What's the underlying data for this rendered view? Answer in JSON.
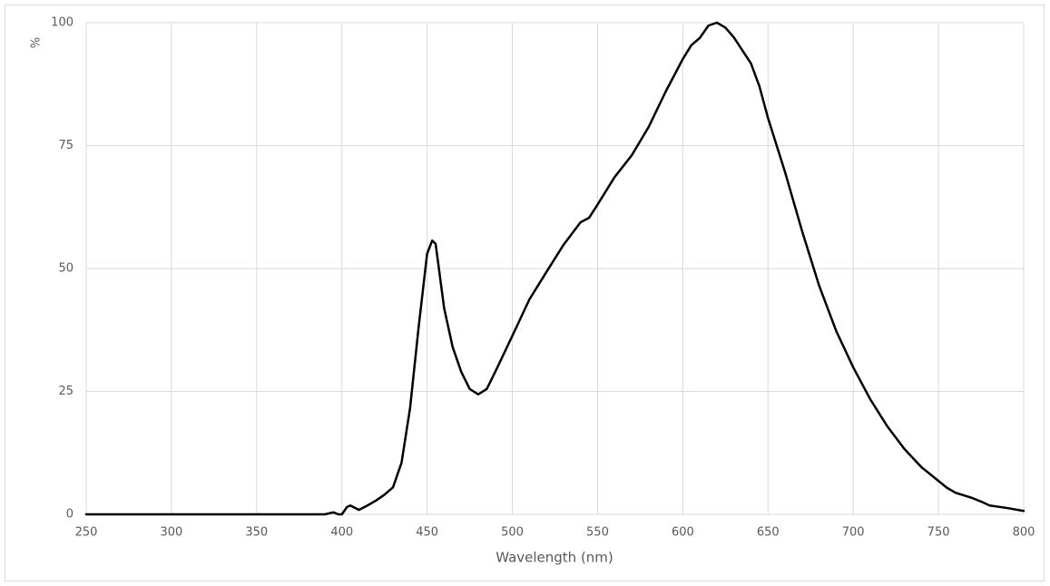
{
  "chart_data": {
    "type": "line",
    "y_label": "%",
    "x_label": "Wavelength (nm)",
    "x": [
      250,
      390,
      395,
      398,
      400,
      403,
      405,
      410,
      415,
      420,
      425,
      430,
      435,
      440,
      445,
      450,
      453,
      455,
      460,
      465,
      470,
      475,
      480,
      485,
      490,
      500,
      510,
      520,
      530,
      540,
      545,
      550,
      560,
      570,
      580,
      590,
      600,
      605,
      610,
      615,
      620,
      625,
      630,
      640,
      645,
      650,
      660,
      670,
      680,
      690,
      700,
      710,
      720,
      730,
      740,
      750,
      755,
      760,
      770,
      775,
      780,
      790,
      800
    ],
    "values": [
      0,
      0,
      0.4,
      0,
      0,
      1.5,
      1.8,
      0.9,
      1.8,
      2.8,
      4,
      5.5,
      10.5,
      21.6,
      38,
      53,
      55.7,
      55,
      41.9,
      34,
      29,
      25.5,
      24.4,
      25.5,
      29,
      36.3,
      43.7,
      49.3,
      54.8,
      59.4,
      60.3,
      63,
      68.6,
      73,
      78.8,
      86,
      92.6,
      95.4,
      96.9,
      99.4,
      100,
      99,
      97,
      91.7,
      87,
      80.6,
      69.6,
      57.6,
      46.5,
      37.3,
      29.9,
      23.4,
      17.9,
      13.3,
      9.6,
      6.8,
      5.4,
      4.4,
      3.3,
      2.6,
      1.8,
      1.3,
      0.7
    ],
    "color": "#000000",
    "xlim": [
      250,
      800
    ],
    "xticks": [
      250,
      300,
      350,
      400,
      450,
      500,
      550,
      600,
      650,
      700,
      750,
      800
    ],
    "ylim": [
      0,
      100
    ],
    "yticks": [
      0,
      25,
      50,
      75,
      100
    ],
    "grid": true
  }
}
